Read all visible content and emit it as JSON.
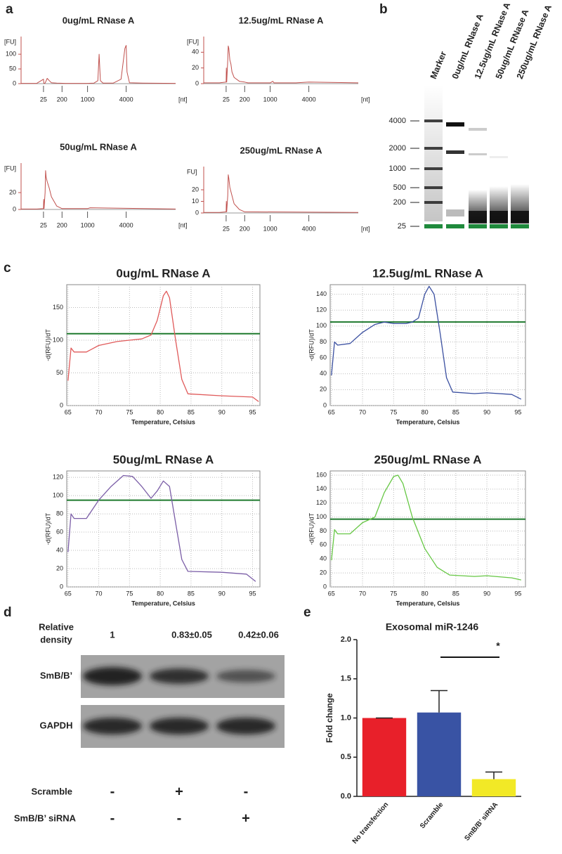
{
  "panel_labels": [
    "a",
    "b",
    "c",
    "d",
    "e"
  ],
  "chart_data": [
    {
      "type": "line",
      "title": "0ug/mL RNase A",
      "ylabel": "[FU]",
      "xlabel": "[nt]",
      "color": "#c0504d",
      "x": [
        15,
        22,
        25,
        28,
        40,
        60,
        80,
        100,
        150,
        300,
        600,
        1000,
        1500,
        1800,
        1900,
        2000,
        2200,
        3000,
        3600,
        3900,
        4000,
        4100,
        4400,
        6000,
        10000
      ],
      "values": [
        1,
        1,
        15,
        1,
        2,
        18,
        10,
        3,
        2,
        1,
        1,
        1,
        2,
        10,
        100,
        10,
        2,
        2,
        15,
        120,
        130,
        40,
        3,
        2,
        1
      ],
      "xlim": [
        15,
        10000
      ],
      "xticks": [
        25,
        200,
        1000,
        4000
      ],
      "ylim": [
        0,
        160
      ],
      "yticks": [
        0,
        50,
        100
      ]
    },
    {
      "type": "line",
      "title": "12.5ug/mL RNase A",
      "ylabel": "[FU]",
      "xlabel": "[nt]",
      "color": "#c0504d",
      "x": [
        15,
        22,
        25,
        27,
        30,
        40,
        45,
        50,
        60,
        70,
        80,
        100,
        150,
        200,
        300,
        1000,
        1200,
        1300,
        1500,
        3000,
        4000,
        10000
      ],
      "values": [
        1,
        1,
        2,
        20,
        2,
        30,
        48,
        45,
        30,
        25,
        15,
        8,
        3,
        2,
        1,
        1,
        3,
        1,
        1,
        1,
        2,
        1
      ],
      "xlim": [
        15,
        10000
      ],
      "xticks": [
        25,
        200,
        1000,
        4000
      ],
      "ylim": [
        0,
        60
      ],
      "yticks": [
        0,
        20,
        40
      ]
    },
    {
      "type": "line",
      "title": "50ug/mL RNase A",
      "ylabel": "[FU]",
      "xlabel": "[nt]",
      "color": "#c0504d",
      "x": [
        15,
        22,
        25,
        27,
        30,
        40,
        45,
        50,
        60,
        80,
        100,
        150,
        200,
        1000,
        1200,
        10000
      ],
      "values": [
        0.5,
        0.5,
        1,
        12,
        1,
        20,
        46,
        38,
        33,
        25,
        15,
        4,
        1,
        1,
        2,
        0.5
      ],
      "xlim": [
        15,
        10000
      ],
      "xticks": [
        25,
        200,
        1000,
        4000
      ],
      "ylim": [
        0,
        55
      ],
      "yticks": [
        0,
        20
      ]
    },
    {
      "type": "line",
      "title": "250ug/mL RNase A",
      "ylabel": "FU]",
      "xlabel": "[nt]",
      "color": "#c0504d",
      "x": [
        15,
        22,
        25,
        27,
        30,
        40,
        45,
        50,
        60,
        80,
        100,
        150,
        200,
        10000
      ],
      "values": [
        0.5,
        0.5,
        1,
        10,
        1,
        15,
        33,
        30,
        22,
        15,
        8,
        3,
        1,
        0.5
      ],
      "xlim": [
        15,
        10000
      ],
      "xticks": [
        25,
        200,
        1000,
        4000
      ],
      "ylim": [
        0,
        40
      ],
      "yticks": [
        0,
        10,
        20
      ]
    },
    {
      "type": "line",
      "title": "0ug/mL RNase A",
      "xlabel": "Temperature, Celsius",
      "ylabel": "-d(RFU)/dT",
      "color": "#e05a5a",
      "grid": true,
      "x": [
        65,
        65.5,
        66,
        68,
        70,
        73,
        75,
        77,
        78.5,
        79.5,
        80.5,
        81,
        81.5,
        82.5,
        83.5,
        84.5,
        90,
        95,
        96
      ],
      "values": [
        38,
        88,
        82,
        82,
        92,
        98,
        100,
        102,
        108,
        130,
        168,
        175,
        165,
        100,
        40,
        18,
        15,
        13,
        6
      ],
      "xlim": [
        64.8,
        96.2
      ],
      "xticks": [
        65,
        70,
        75,
        80,
        85,
        90,
        95
      ],
      "ylim": [
        0,
        185
      ],
      "yticks": [
        0,
        50,
        100,
        150
      ],
      "threshold": 110,
      "threshold_color": "#1f7a2e"
    },
    {
      "type": "line",
      "title": "12.5ug/mL RNase A",
      "xlabel": "Temperature, Celsius",
      "ylabel": "-d(RFU)/dT",
      "color": "#3a4fa0",
      "grid": true,
      "x": [
        65,
        65.5,
        66,
        68,
        70,
        72,
        73.5,
        75,
        77,
        78,
        79,
        80,
        80.7,
        81.5,
        82.5,
        83.5,
        84.5,
        88,
        90,
        94,
        95.5
      ],
      "values": [
        38,
        80,
        76,
        78,
        92,
        102,
        105,
        103,
        103,
        105,
        110,
        140,
        150,
        140,
        90,
        35,
        17,
        15,
        16,
        14,
        8
      ],
      "xlim": [
        64.8,
        96.2
      ],
      "xticks": [
        65,
        70,
        75,
        80,
        85,
        90,
        95
      ],
      "ylim": [
        0,
        152
      ],
      "yticks": [
        0,
        20,
        40,
        60,
        80,
        100,
        120,
        140
      ],
      "threshold": 105,
      "threshold_color": "#1f7a2e"
    },
    {
      "type": "line",
      "title": "50ug/mL RNase A",
      "xlabel": "Temperature, Celsius",
      "ylabel": "-d(RFU)/dT",
      "color": "#7b5ea7",
      "grid": true,
      "x": [
        65,
        65.5,
        66,
        68,
        70,
        72,
        74,
        75.5,
        77,
        78.5,
        79.5,
        80.5,
        81.5,
        82.5,
        83.5,
        84.5,
        90,
        94,
        95.5
      ],
      "values": [
        38,
        80,
        75,
        75,
        95,
        110,
        122,
        121,
        110,
        97,
        105,
        116,
        110,
        70,
        30,
        17,
        16,
        14,
        6
      ],
      "xlim": [
        64.8,
        96.2
      ],
      "xticks": [
        65,
        70,
        75,
        80,
        85,
        90,
        95
      ],
      "ylim": [
        0,
        127
      ],
      "yticks": [
        0,
        20,
        40,
        60,
        80,
        100,
        120
      ],
      "threshold": 95,
      "threshold_color": "#1f7a2e"
    },
    {
      "type": "line",
      "title": "250ug/mL RNase A",
      "xlabel": "Temperature, Celsius",
      "ylabel": "-d(RFU)/dT",
      "color": "#66c744",
      "grid": true,
      "x": [
        65,
        65.5,
        66,
        68,
        70,
        72,
        73.5,
        75,
        75.7,
        76.5,
        78,
        80,
        82,
        84,
        88,
        90,
        94,
        95.5
      ],
      "values": [
        38,
        82,
        76,
        76,
        92,
        100,
        135,
        158,
        160,
        148,
        100,
        55,
        28,
        17,
        15,
        16,
        13,
        10
      ],
      "xlim": [
        64.8,
        96.2
      ],
      "xticks": [
        65,
        70,
        75,
        80,
        85,
        90,
        95
      ],
      "ylim": [
        0,
        166
      ],
      "yticks": [
        0,
        20,
        40,
        60,
        80,
        100,
        120,
        140,
        160
      ],
      "threshold": 97,
      "threshold_color": "#1f7a2e"
    },
    {
      "type": "bar",
      "title": "Exosomal miR-1246",
      "ylabel": "Fold change",
      "categories": [
        "No transfection",
        "Scramble",
        "SmB/B’ siRNA"
      ],
      "values": [
        1.0,
        1.07,
        0.22
      ],
      "errors": [
        0,
        0.28,
        0.09
      ],
      "colors": [
        "#e8202a",
        "#3953a4",
        "#f2e926"
      ],
      "ylim": [
        0,
        2
      ],
      "yticks": [
        {
          "value": 0,
          "label": "0.0"
        },
        {
          "value": 0.5,
          "label": "0.5"
        },
        {
          "value": 1,
          "label": "1.0"
        },
        {
          "value": 1.5,
          "label": "1.5"
        },
        {
          "value": 2,
          "label": "2.0"
        }
      ],
      "annotation": "*"
    }
  ],
  "gel": {
    "lanes": [
      "Marker",
      "0ug/mL RNase A",
      "12.5ug/mL RNase A",
      "50ug/mL RNase A",
      "250ug/mL RNase A"
    ],
    "sizes": [
      4000,
      2000,
      1000,
      500,
      200,
      25
    ]
  },
  "blot": {
    "density_label": [
      "Relative",
      "density"
    ],
    "densities": [
      "1",
      "0.83±0.05",
      "0.42±0.06"
    ],
    "bands": [
      "SmB/B’",
      "GAPDH"
    ],
    "treatments": [
      {
        "name": "Scramble",
        "signs": [
          "-",
          "+",
          "-"
        ]
      },
      {
        "name": "SmB/B’ siRNA",
        "signs": [
          "-",
          "-",
          "+"
        ]
      }
    ]
  }
}
